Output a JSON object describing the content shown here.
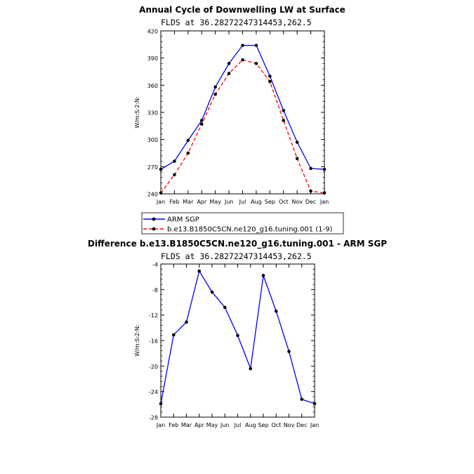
{
  "colors": {
    "obs": "#0000ff",
    "model": "#ff0000",
    "diff": "#0000ff",
    "marker": "#000000"
  },
  "chart_data": [
    {
      "type": "line",
      "title": "Annual Cycle of Downwelling LW at Surface",
      "subtitle": "FLDS at 36.28272247314453,262.5",
      "xlabel": "",
      "ylabel": "W/m:S:2:N:",
      "categories": [
        "Jan",
        "Feb",
        "Mar",
        "Apr",
        "May",
        "Jun",
        "Jul",
        "Aug",
        "Sep",
        "Oct",
        "Nov",
        "Dec",
        "Jan"
      ],
      "ylim": [
        240,
        420
      ],
      "yticks": [
        240,
        270,
        300,
        330,
        360,
        390,
        420
      ],
      "series": [
        {
          "name": "ARM SGP",
          "style": "solid",
          "color": "#0000ff",
          "values": [
            267,
            276,
            299,
            321,
            358,
            384,
            404,
            404,
            370,
            332,
            297,
            268,
            267
          ]
        },
        {
          "name": "b.e13.B1850C5CN.ne120_g16.tuning.001 (1-9)",
          "style": "dashed",
          "color": "#ff0000",
          "values": [
            241,
            261,
            285,
            317,
            350,
            373,
            388,
            384,
            364,
            321,
            279,
            243,
            241
          ]
        }
      ],
      "legend_position": "bottom"
    },
    {
      "type": "line",
      "title": "Difference b.e13.B1850C5CN.ne120_g16.tuning.001 - ARM SGP",
      "subtitle": "FLDS at 36.28272247314453,262.5",
      "xlabel": "",
      "ylabel": "W/m:S:2:N:",
      "categories": [
        "Jan",
        "Feb",
        "Mar",
        "Apr",
        "May",
        "Jun",
        "Jul",
        "Aug",
        "Sep",
        "Oct",
        "Nov",
        "Dec",
        "Jan"
      ],
      "ylim": [
        -28,
        -4
      ],
      "yticks": [
        -28,
        -24,
        -20,
        -16,
        -12,
        -8,
        -4
      ],
      "series": [
        {
          "style": "solid",
          "color": "#0000ff",
          "values": [
            -25.9,
            -15.1,
            -13.1,
            -5.1,
            -8.4,
            -10.8,
            -15.2,
            -20.4,
            -5.8,
            -11.4,
            -17.7,
            -25.2,
            -25.9
          ]
        }
      ]
    }
  ]
}
